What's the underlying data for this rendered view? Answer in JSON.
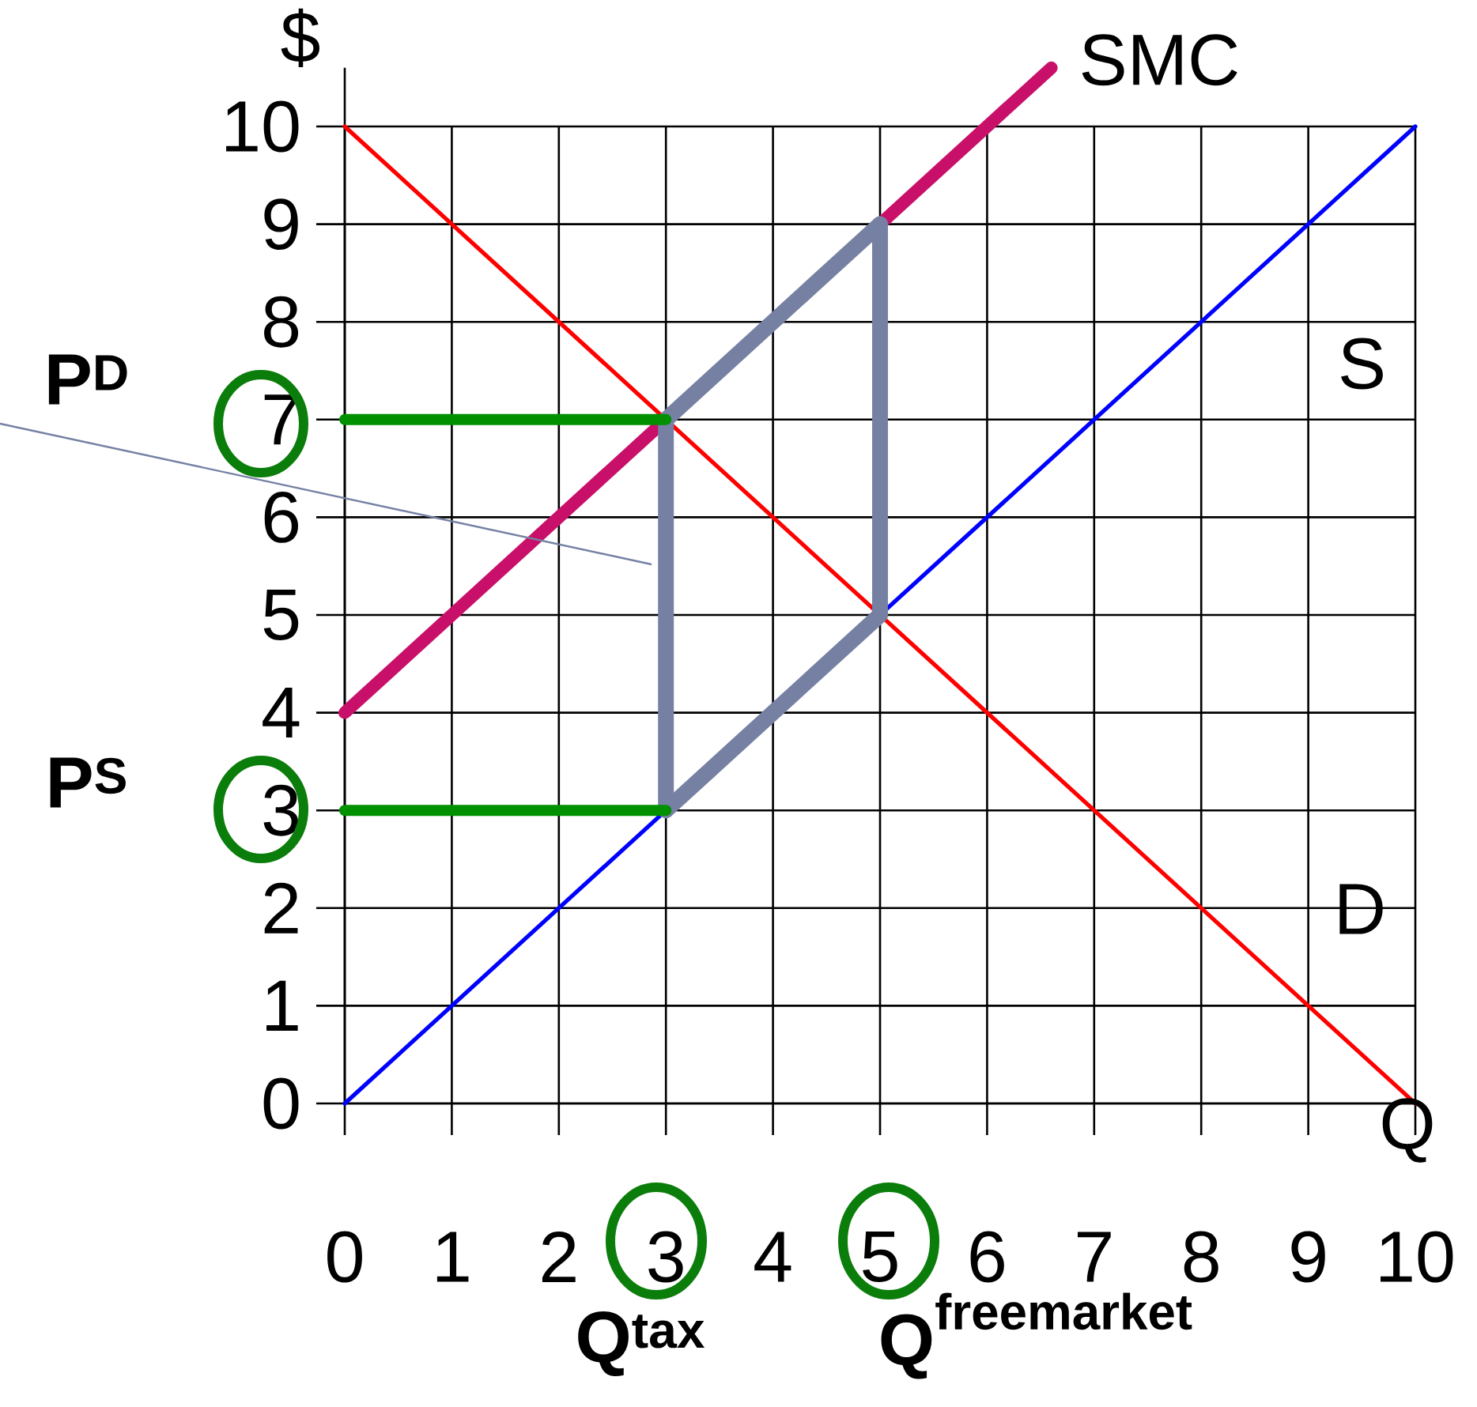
{
  "chart_data": {
    "type": "line",
    "xlabel": "Q",
    "ylabel": "$",
    "xlim": [
      0,
      10
    ],
    "ylim": [
      0,
      10.6
    ],
    "xticks": [
      0,
      1,
      2,
      3,
      4,
      5,
      6,
      7,
      8,
      9,
      10
    ],
    "yticks": [
      0,
      1,
      2,
      3,
      4,
      5,
      6,
      7,
      8,
      9,
      10
    ],
    "grid": true,
    "marker": "none",
    "line_style": "solid",
    "series": [
      {
        "name": "D",
        "color": "#ff0000",
        "x": [
          0,
          10
        ],
        "values": [
          10,
          0
        ]
      },
      {
        "name": "S",
        "color": "#0000ff",
        "x": [
          0,
          10
        ],
        "values": [
          0,
          10
        ]
      },
      {
        "name": "SMC",
        "color": "#c8106a",
        "x": [
          0,
          6.6
        ],
        "values": [
          4,
          10.6
        ]
      },
      {
        "color": "#7580a3",
        "x": [
          3,
          3
        ],
        "values": [
          3,
          7
        ]
      },
      {
        "color": "#7580a3",
        "x": [
          3,
          5
        ],
        "values": [
          7,
          9
        ]
      },
      {
        "color": "#7580a3",
        "x": [
          5,
          5
        ],
        "values": [
          9,
          5
        ]
      },
      {
        "color": "#7580a3",
        "x": [
          3,
          5
        ],
        "values": [
          3,
          5
        ]
      },
      {
        "color": "#009000",
        "x": [
          0,
          3
        ],
        "values": [
          7,
          7
        ]
      },
      {
        "color": "#009000",
        "x": [
          0,
          3
        ],
        "values": [
          3,
          3
        ]
      }
    ],
    "annotations": [
      "P$^{D}$",
      "P$^{S}$",
      "Q$^{tax}$",
      "\\textbf{Q}^{\\textbf{\\fontsize{32}{32}\\selectfont freemarket}}"
    ]
  }
}
